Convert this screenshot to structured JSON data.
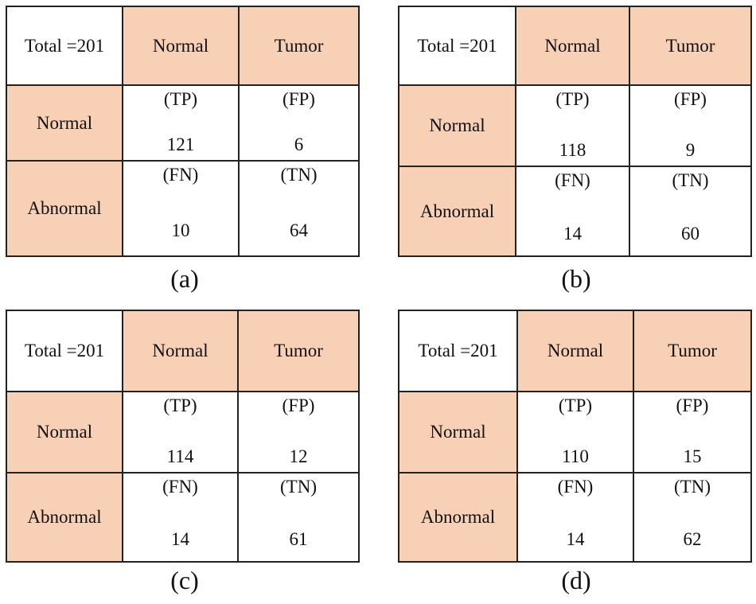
{
  "panels": [
    {
      "caption": "(a)",
      "corner": "Total =201",
      "col_headers": [
        "Normal",
        "Tumor"
      ],
      "row_headers": [
        "Normal",
        "Abnormal"
      ],
      "cells": [
        [
          {
            "tag": "(TP)",
            "value": "121"
          },
          {
            "tag": "(FP)",
            "value": "6"
          }
        ],
        [
          {
            "tag": "(FN)",
            "value": "10"
          },
          {
            "tag": "(TN)",
            "value": "64"
          }
        ]
      ]
    },
    {
      "caption": "(b)",
      "corner": "Total =201",
      "col_headers": [
        "Normal",
        "Tumor"
      ],
      "row_headers": [
        "Normal",
        "Abnormal"
      ],
      "cells": [
        [
          {
            "tag": "(TP)",
            "value": "118"
          },
          {
            "tag": "(FP)",
            "value": "9"
          }
        ],
        [
          {
            "tag": "(FN)",
            "value": "14"
          },
          {
            "tag": "(TN)",
            "value": "60"
          }
        ]
      ]
    },
    {
      "caption": "(c)",
      "corner": "Total =201",
      "col_headers": [
        "Normal",
        "Tumor"
      ],
      "row_headers": [
        "Normal",
        "Abnormal"
      ],
      "cells": [
        [
          {
            "tag": "(TP)",
            "value": "114"
          },
          {
            "tag": "(FP)",
            "value": "12"
          }
        ],
        [
          {
            "tag": "(FN)",
            "value": "14"
          },
          {
            "tag": "(TN)",
            "value": "61"
          }
        ]
      ]
    },
    {
      "caption": "(d)",
      "corner": "Total =201",
      "col_headers": [
        "Normal",
        "Tumor"
      ],
      "row_headers": [
        "Normal",
        "Abnormal"
      ],
      "cells": [
        [
          {
            "tag": "(TP)",
            "value": "110"
          },
          {
            "tag": "(FP)",
            "value": "15"
          }
        ],
        [
          {
            "tag": "(FN)",
            "value": "14"
          },
          {
            "tag": "(TN)",
            "value": "62"
          }
        ]
      ]
    }
  ],
  "colors": {
    "header_fill": "#F8D0B6",
    "border": "#222222"
  }
}
